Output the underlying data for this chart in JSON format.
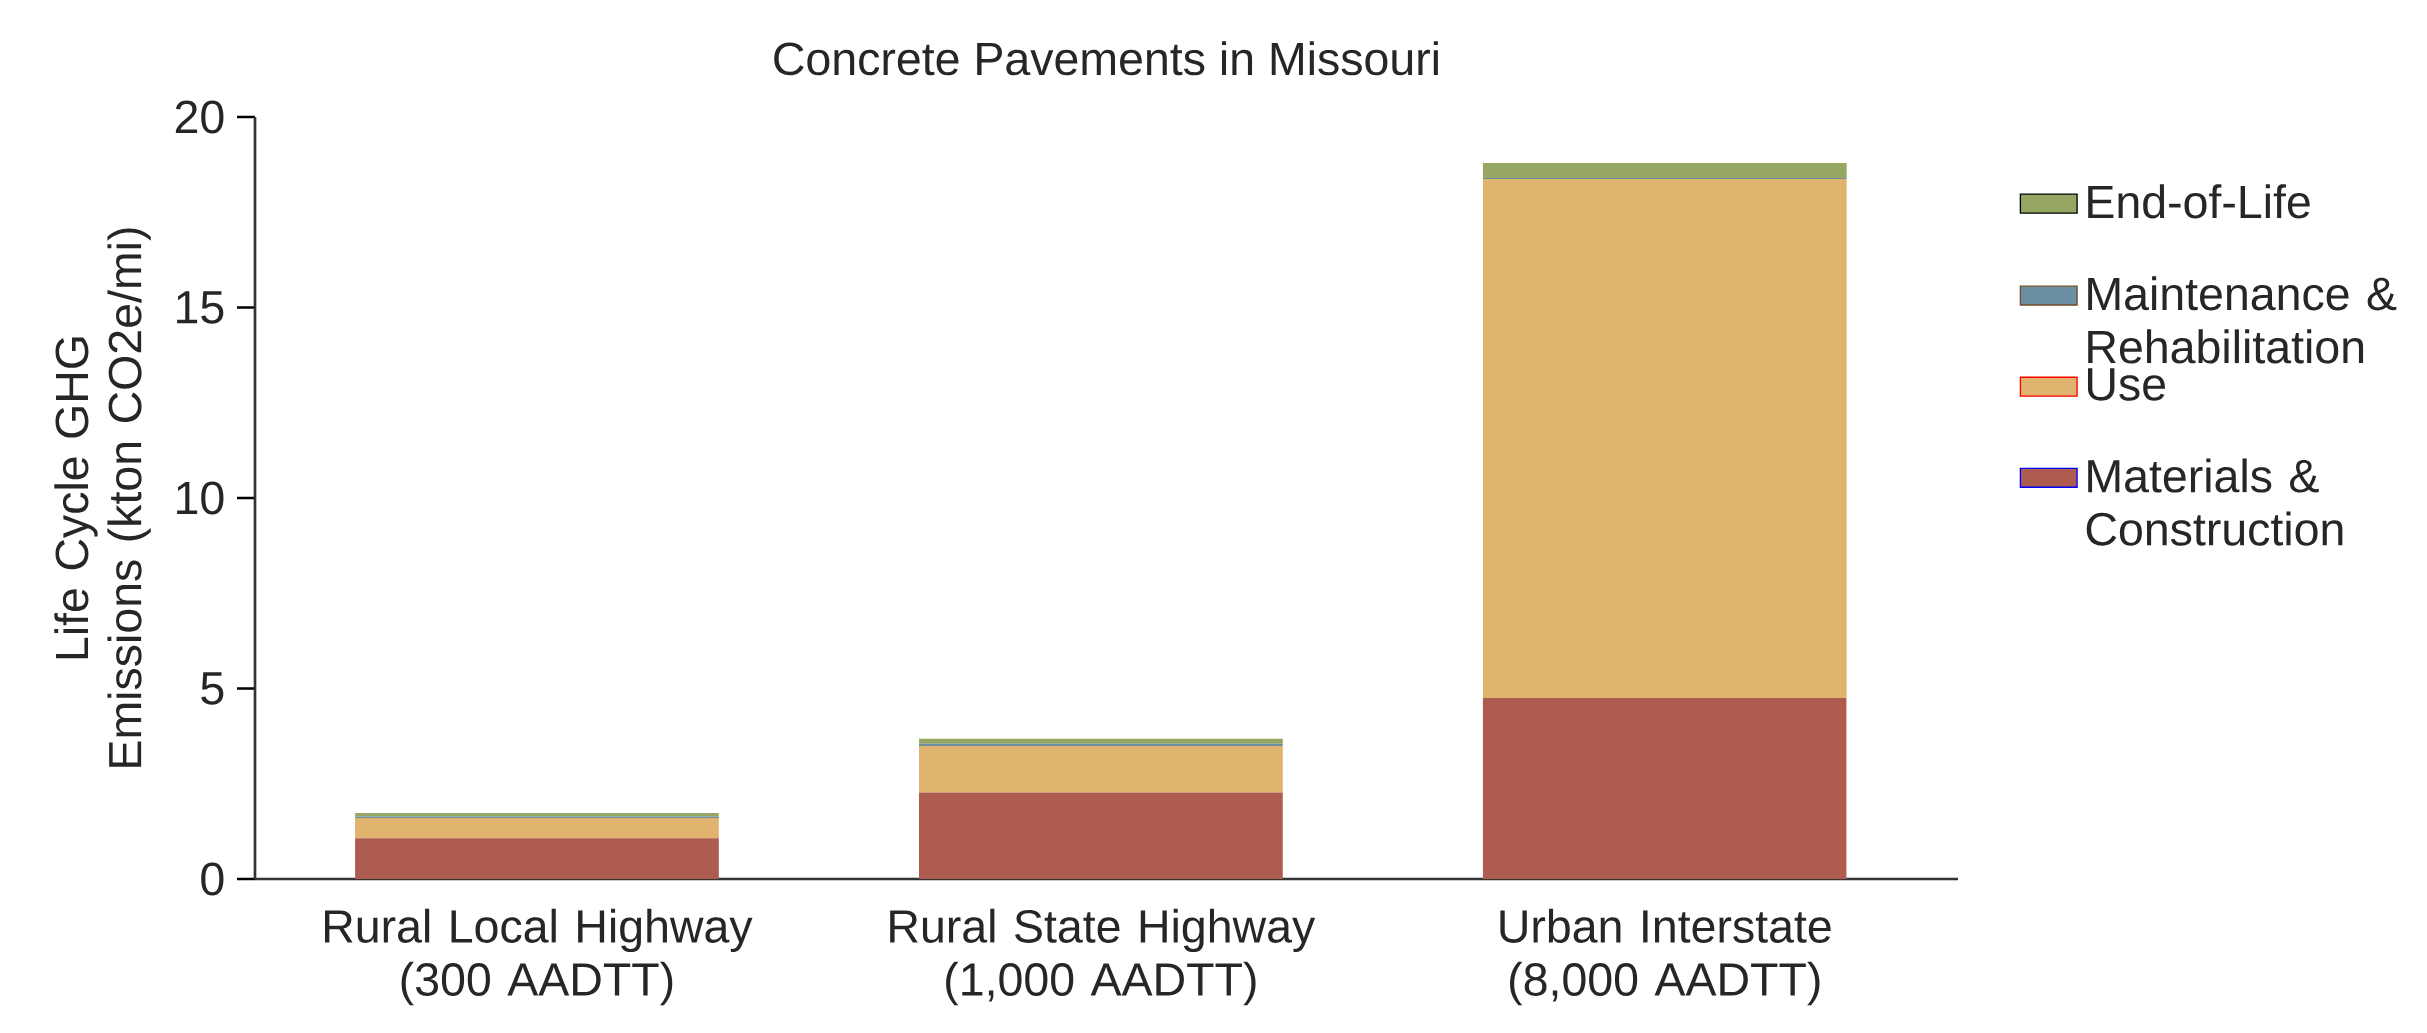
{
  "chart_data": {
    "type": "bar",
    "stacked": true,
    "title": "Concrete Pavements in Missouri",
    "ylabel": "Life Cycle GHG Emissions (kton CO2e/mi)",
    "categories": [
      "Rural Local Highway (300 AADTT)",
      "Rural State Highway (1,000 AADTT)",
      "Urban Interstate (8,000 AADTT)"
    ],
    "series": [
      {
        "name": "Materials & Construction",
        "color": "#af5c50",
        "values": [
          1.07,
          2.27,
          4.75
        ]
      },
      {
        "name": "Use",
        "color": "#e0b36f",
        "values": [
          0.53,
          1.22,
          13.62
        ]
      },
      {
        "name": "Maintenance & Rehabilitation",
        "color": "#6b90a4",
        "values": [
          0.04,
          0.06,
          0.03
        ]
      },
      {
        "name": "End-of-Life",
        "color": "#95a762",
        "values": [
          0.09,
          0.13,
          0.39
        ]
      }
    ],
    "ylim": [
      0,
      20
    ],
    "yticks": [
      0,
      5,
      10,
      15,
      20
    ],
    "grid": false,
    "legend": "right"
  }
}
